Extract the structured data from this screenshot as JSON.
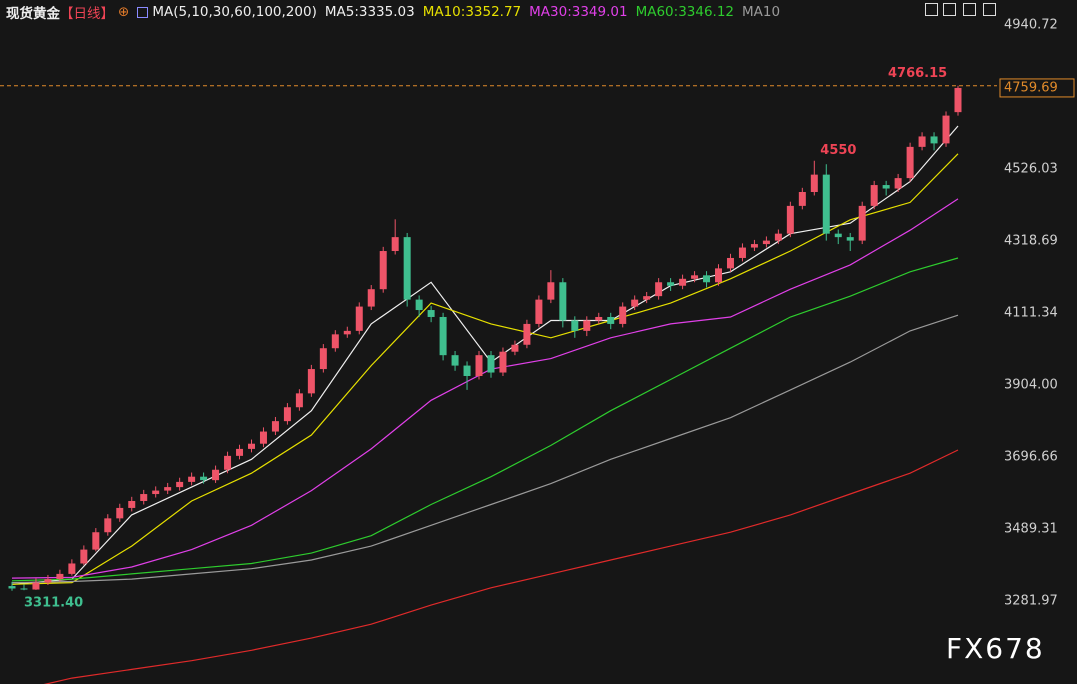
{
  "header": {
    "symbol": "现货黄金",
    "period": "【日线】",
    "indicator": "MA(5,10,30,60,100,200)"
  },
  "watermark": "FX678",
  "chart_data": {
    "type": "candlestick",
    "up_color": "#ee5468",
    "down_color": "#3fbf8f",
    "ylim": [
      3040,
      5013
    ],
    "yticks": [
      4940.72,
      4526.03,
      4318.69,
      4111.34,
      {
        "value": 3904,
        "label": "3904.00"
      },
      3696.66,
      3489.31,
      3281.97
    ],
    "grid": false,
    "open": [
      3325,
      3318,
      3315,
      3335,
      3345,
      3360,
      3390,
      3430,
      3480,
      3520,
      3550,
      3570,
      3590,
      3600,
      3610,
      3625,
      3640,
      3630,
      3660,
      3700,
      3720,
      3735,
      3770,
      3800,
      3840,
      3880,
      3950,
      4010,
      4050,
      4060,
      4130,
      4180,
      4290,
      4330,
      4150,
      4120,
      4100,
      3990,
      3960,
      3930,
      3990,
      3940,
      4000,
      4020,
      4080,
      4150,
      4200,
      4090,
      4060,
      4090,
      4100,
      4080,
      4130,
      4150,
      4160,
      4200,
      4190,
      4210,
      4220,
      4200,
      4240,
      4270,
      4300,
      4310,
      4320,
      4340,
      4420,
      4460,
      4510,
      4340,
      4330,
      4320,
      4420,
      4480,
      4470,
      4500,
      4590,
      4620,
      4600,
      4690
    ],
    "high": [
      3337,
      3330,
      3347,
      3357,
      3372,
      3402,
      3442,
      3492,
      3532,
      3562,
      3582,
      3602,
      3612,
      3622,
      3637,
      3652,
      3652,
      3672,
      3712,
      3732,
      3747,
      3782,
      3812,
      3852,
      3892,
      3962,
      4022,
      4062,
      4072,
      4142,
      4192,
      4302,
      4381.29,
      4342,
      4162,
      4132,
      4112,
      4002,
      3972,
      4002,
      4002,
      4012,
      4032,
      4092,
      4162,
      4235,
      4212,
      4102,
      4102,
      4112,
      4112,
      4142,
      4162,
      4172,
      4212,
      4212,
      4222,
      4232,
      4232,
      4252,
      4282,
      4312,
      4322,
      4332,
      4352,
      4432,
      4472,
      4550,
      4540,
      4352,
      4342,
      4432,
      4492,
      4492,
      4512,
      4602,
      4632,
      4632,
      4692,
      4766.15
    ],
    "low": [
      3311.4,
      3313,
      3314,
      3328,
      3338,
      3355,
      3385,
      3425,
      3470,
      3510,
      3540,
      3560,
      3580,
      3590,
      3600,
      3615,
      3620,
      3622,
      3650,
      3690,
      3710,
      3725,
      3760,
      3790,
      3830,
      3870,
      3940,
      4000,
      4040,
      4050,
      4120,
      4170,
      4280,
      4130,
      4100,
      4085,
      3975,
      3945,
      3890,
      3920,
      3925,
      3930,
      3990,
      4010,
      4070,
      4140,
      4070,
      4040,
      4045,
      4080,
      4065,
      4070,
      4120,
      4140,
      4150,
      4175,
      4180,
      4200,
      4185,
      4190,
      4230,
      4260,
      4290,
      4300,
      4310,
      4330,
      4410,
      4450,
      4320,
      4310,
      4290,
      4310,
      4410,
      4450,
      4460,
      4490,
      4580,
      4580,
      4590,
      4680
    ],
    "close": [
      3318,
      3315,
      3335,
      3345,
      3360,
      3390,
      3430,
      3480,
      3520,
      3550,
      3570,
      3590,
      3600,
      3610,
      3625,
      3640,
      3630,
      3660,
      3700,
      3720,
      3735,
      3770,
      3800,
      3840,
      3880,
      3950,
      4010,
      4050,
      4060,
      4130,
      4180,
      4290,
      4330,
      4150,
      4120,
      4100,
      3990,
      3960,
      3930,
      3990,
      3940,
      4000,
      4020,
      4080,
      4150,
      4200,
      4090,
      4060,
      4090,
      4100,
      4080,
      4130,
      4150,
      4160,
      4200,
      4190,
      4210,
      4220,
      4200,
      4240,
      4270,
      4300,
      4310,
      4320,
      4340,
      4420,
      4460,
      4510,
      4340,
      4330,
      4320,
      4420,
      4480,
      4470,
      4500,
      4590,
      4620,
      4600,
      4680,
      4759.69
    ],
    "low_labels": {
      "0": "3311.40"
    },
    "series": [
      {
        "name": "MA5:3335.03",
        "color": "#f0f0f0",
        "x": [
          0,
          5,
          10,
          15,
          20,
          25,
          30,
          35,
          40,
          45,
          50,
          55,
          60,
          65,
          70,
          75,
          79
        ],
        "values": [
          3330,
          3345,
          3530,
          3610,
          3690,
          3830,
          4080,
          4200,
          3970,
          4090,
          4090,
          4190,
          4230,
          4340,
          4370,
          4490,
          4650
        ]
      },
      {
        "name": "MA10:3352.77",
        "color": "#e6e000",
        "x": [
          0,
          5,
          10,
          15,
          20,
          25,
          30,
          35,
          40,
          45,
          50,
          55,
          60,
          65,
          70,
          75,
          79
        ],
        "values": [
          3330,
          3335,
          3440,
          3570,
          3650,
          3760,
          3960,
          4140,
          4080,
          4040,
          4090,
          4140,
          4210,
          4290,
          4380,
          4430,
          4570
        ]
      },
      {
        "name": "MA30:3349.01",
        "color": "#e040e8",
        "x": [
          0,
          5,
          10,
          15,
          20,
          25,
          30,
          35,
          40,
          45,
          50,
          55,
          60,
          65,
          70,
          75,
          79
        ],
        "values": [
          3348,
          3350,
          3380,
          3430,
          3500,
          3600,
          3720,
          3860,
          3950,
          3980,
          4040,
          4080,
          4100,
          4180,
          4250,
          4350,
          4440
        ]
      },
      {
        "name": "MA60:3346.12",
        "color": "#2ecc2e",
        "x": [
          0,
          5,
          10,
          15,
          20,
          25,
          30,
          35,
          40,
          45,
          50,
          55,
          60,
          65,
          70,
          75,
          79
        ],
        "values": [
          3340,
          3345,
          3360,
          3375,
          3390,
          3420,
          3470,
          3560,
          3640,
          3730,
          3830,
          3920,
          4010,
          4100,
          4160,
          4230,
          4270
        ]
      },
      {
        "name": "MA10",
        "color": "#9a9a9a",
        "x": [
          0,
          5,
          10,
          15,
          20,
          25,
          30,
          35,
          40,
          45,
          50,
          55,
          60,
          65,
          70,
          75,
          79
        ],
        "values": [
          3335,
          3338,
          3345,
          3360,
          3375,
          3400,
          3440,
          3500,
          3560,
          3620,
          3690,
          3750,
          3810,
          3890,
          3970,
          4060,
          4105
        ]
      },
      {
        "color": "#e02a2a",
        "x": [
          0,
          5,
          10,
          15,
          20,
          25,
          30,
          35,
          40,
          45,
          50,
          55,
          60,
          65,
          70,
          75,
          79
        ],
        "values": [
          3020,
          3060,
          3085,
          3110,
          3140,
          3175,
          3215,
          3270,
          3320,
          3360,
          3400,
          3440,
          3480,
          3530,
          3590,
          3650,
          3717
        ]
      }
    ]
  }
}
